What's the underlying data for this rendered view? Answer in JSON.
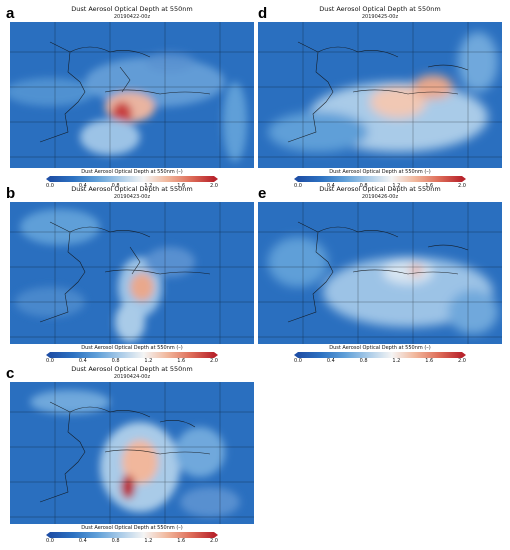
{
  "panels": [
    {
      "label": "a",
      "title": "Dust Aerosol Optical Depth at 550nm",
      "date": "20190422-00z"
    },
    {
      "label": "b",
      "title": "Dust Aerosol Optical Depth at 550nm",
      "date": "20190423-00z"
    },
    {
      "label": "c",
      "title": "Dust Aerosol Optical Depth at 550nm",
      "date": "20190424-00z"
    },
    {
      "label": "d",
      "title": "Dust Aerosol Optical Depth at 550nm",
      "date": "20190425-00z"
    },
    {
      "label": "e",
      "title": "Dust Aerosol Optical Depth at 550nm",
      "date": "20190426-00z"
    }
  ],
  "colorbar": {
    "label": "Dust Aerosol Optical Depth at 550nm (–)",
    "ticks": [
      "0.0",
      "0.4",
      "0.8",
      "1.2",
      "1.6",
      "2.0"
    ],
    "min": 0.0,
    "max": 2.0,
    "colors": [
      "#1f4fa6",
      "#2d72c2",
      "#5f9fd8",
      "#a9cbe8",
      "#f4f4f4",
      "#f1b79c",
      "#de6e5a",
      "#b8242c"
    ]
  }
}
